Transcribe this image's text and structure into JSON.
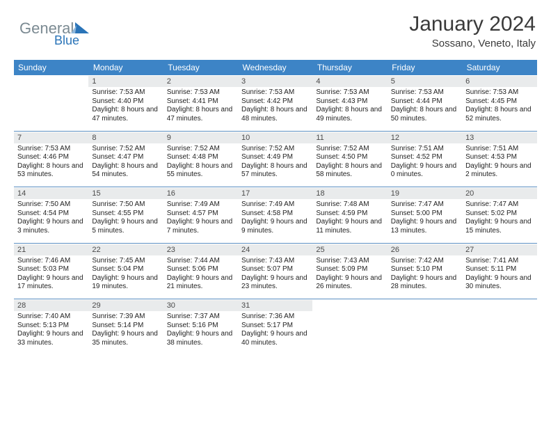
{
  "brand": {
    "name_a": "General",
    "name_b": "Blue",
    "color_gray": "#7b8a92",
    "color_blue": "#2a74b8"
  },
  "title": "January 2024",
  "location": "Sossano, Veneto, Italy",
  "theme": {
    "header_bg": "#3d84c6",
    "header_fg": "#ffffff",
    "daybar_bg": "#e9ebec",
    "rule": "#5b8fc2",
    "text": "#222222"
  },
  "dow": [
    "Sunday",
    "Monday",
    "Tuesday",
    "Wednesday",
    "Thursday",
    "Friday",
    "Saturday"
  ],
  "weeks": [
    [
      {
        "n": "",
        "sr": "",
        "ss": "",
        "dl": ""
      },
      {
        "n": "1",
        "sr": "7:53 AM",
        "ss": "4:40 PM",
        "dl": "8 hours and 47 minutes."
      },
      {
        "n": "2",
        "sr": "7:53 AM",
        "ss": "4:41 PM",
        "dl": "8 hours and 47 minutes."
      },
      {
        "n": "3",
        "sr": "7:53 AM",
        "ss": "4:42 PM",
        "dl": "8 hours and 48 minutes."
      },
      {
        "n": "4",
        "sr": "7:53 AM",
        "ss": "4:43 PM",
        "dl": "8 hours and 49 minutes."
      },
      {
        "n": "5",
        "sr": "7:53 AM",
        "ss": "4:44 PM",
        "dl": "8 hours and 50 minutes."
      },
      {
        "n": "6",
        "sr": "7:53 AM",
        "ss": "4:45 PM",
        "dl": "8 hours and 52 minutes."
      }
    ],
    [
      {
        "n": "7",
        "sr": "7:53 AM",
        "ss": "4:46 PM",
        "dl": "8 hours and 53 minutes."
      },
      {
        "n": "8",
        "sr": "7:52 AM",
        "ss": "4:47 PM",
        "dl": "8 hours and 54 minutes."
      },
      {
        "n": "9",
        "sr": "7:52 AM",
        "ss": "4:48 PM",
        "dl": "8 hours and 55 minutes."
      },
      {
        "n": "10",
        "sr": "7:52 AM",
        "ss": "4:49 PM",
        "dl": "8 hours and 57 minutes."
      },
      {
        "n": "11",
        "sr": "7:52 AM",
        "ss": "4:50 PM",
        "dl": "8 hours and 58 minutes."
      },
      {
        "n": "12",
        "sr": "7:51 AM",
        "ss": "4:52 PM",
        "dl": "9 hours and 0 minutes."
      },
      {
        "n": "13",
        "sr": "7:51 AM",
        "ss": "4:53 PM",
        "dl": "9 hours and 2 minutes."
      }
    ],
    [
      {
        "n": "14",
        "sr": "7:50 AM",
        "ss": "4:54 PM",
        "dl": "9 hours and 3 minutes."
      },
      {
        "n": "15",
        "sr": "7:50 AM",
        "ss": "4:55 PM",
        "dl": "9 hours and 5 minutes."
      },
      {
        "n": "16",
        "sr": "7:49 AM",
        "ss": "4:57 PM",
        "dl": "9 hours and 7 minutes."
      },
      {
        "n": "17",
        "sr": "7:49 AM",
        "ss": "4:58 PM",
        "dl": "9 hours and 9 minutes."
      },
      {
        "n": "18",
        "sr": "7:48 AM",
        "ss": "4:59 PM",
        "dl": "9 hours and 11 minutes."
      },
      {
        "n": "19",
        "sr": "7:47 AM",
        "ss": "5:00 PM",
        "dl": "9 hours and 13 minutes."
      },
      {
        "n": "20",
        "sr": "7:47 AM",
        "ss": "5:02 PM",
        "dl": "9 hours and 15 minutes."
      }
    ],
    [
      {
        "n": "21",
        "sr": "7:46 AM",
        "ss": "5:03 PM",
        "dl": "9 hours and 17 minutes."
      },
      {
        "n": "22",
        "sr": "7:45 AM",
        "ss": "5:04 PM",
        "dl": "9 hours and 19 minutes."
      },
      {
        "n": "23",
        "sr": "7:44 AM",
        "ss": "5:06 PM",
        "dl": "9 hours and 21 minutes."
      },
      {
        "n": "24",
        "sr": "7:43 AM",
        "ss": "5:07 PM",
        "dl": "9 hours and 23 minutes."
      },
      {
        "n": "25",
        "sr": "7:43 AM",
        "ss": "5:09 PM",
        "dl": "9 hours and 26 minutes."
      },
      {
        "n": "26",
        "sr": "7:42 AM",
        "ss": "5:10 PM",
        "dl": "9 hours and 28 minutes."
      },
      {
        "n": "27",
        "sr": "7:41 AM",
        "ss": "5:11 PM",
        "dl": "9 hours and 30 minutes."
      }
    ],
    [
      {
        "n": "28",
        "sr": "7:40 AM",
        "ss": "5:13 PM",
        "dl": "9 hours and 33 minutes."
      },
      {
        "n": "29",
        "sr": "7:39 AM",
        "ss": "5:14 PM",
        "dl": "9 hours and 35 minutes."
      },
      {
        "n": "30",
        "sr": "7:37 AM",
        "ss": "5:16 PM",
        "dl": "9 hours and 38 minutes."
      },
      {
        "n": "31",
        "sr": "7:36 AM",
        "ss": "5:17 PM",
        "dl": "9 hours and 40 minutes."
      },
      {
        "n": "",
        "sr": "",
        "ss": "",
        "dl": ""
      },
      {
        "n": "",
        "sr": "",
        "ss": "",
        "dl": ""
      },
      {
        "n": "",
        "sr": "",
        "ss": "",
        "dl": ""
      }
    ]
  ],
  "labels": {
    "sunrise": "Sunrise:",
    "sunset": "Sunset:",
    "daylight": "Daylight:"
  }
}
